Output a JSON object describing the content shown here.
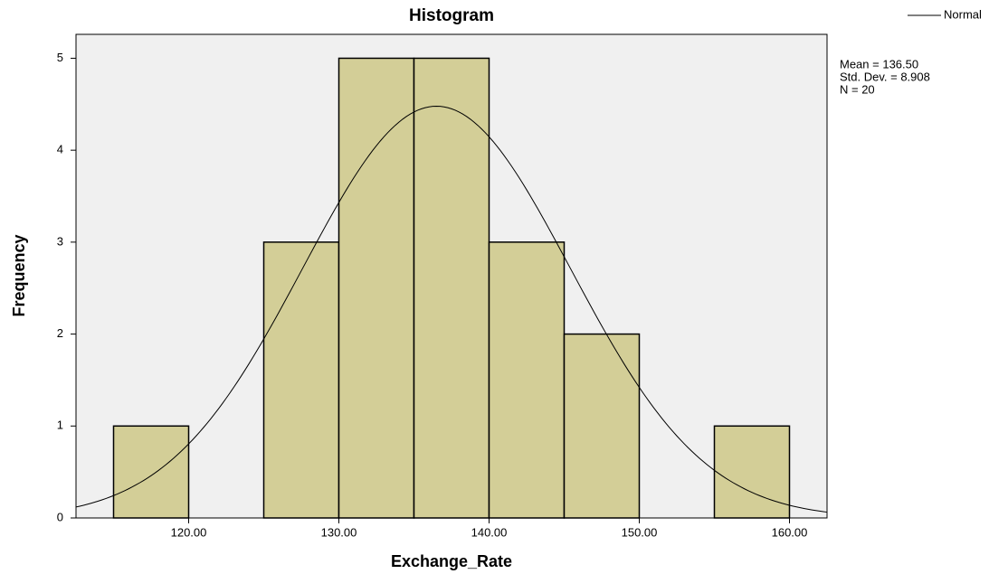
{
  "chart_data": {
    "type": "histogram",
    "title": "Histogram",
    "x_label": "Exchange_Rate",
    "y_label": "Frequency",
    "bins": [
      115,
      120,
      125,
      130,
      135,
      140,
      145,
      150,
      155,
      160
    ],
    "values": [
      1,
      0,
      3,
      5,
      5,
      3,
      2,
      0,
      1
    ],
    "color": "#d3ce97",
    "xlim": [
      112.5,
      162.5
    ],
    "xticks": [
      {
        "value": 120,
        "label": "120.00"
      },
      {
        "value": 130,
        "label": "130.00"
      },
      {
        "value": 140,
        "label": "140.00"
      },
      {
        "value": 150,
        "label": "150.00"
      },
      {
        "value": 160,
        "label": "160.00"
      }
    ],
    "ylim": [
      0,
      5.26
    ],
    "yticks": [
      0,
      1,
      2,
      3,
      4,
      5
    ],
    "legend": {
      "name": "Normal",
      "position": "top-right"
    },
    "stats": [
      {
        "value": 136.5,
        "label": "Mean = 136.50"
      },
      {
        "value": 8.908,
        "label": "Std. Dev. = 8.908"
      },
      {
        "value": 20,
        "label": "N = 20"
      }
    ]
  }
}
